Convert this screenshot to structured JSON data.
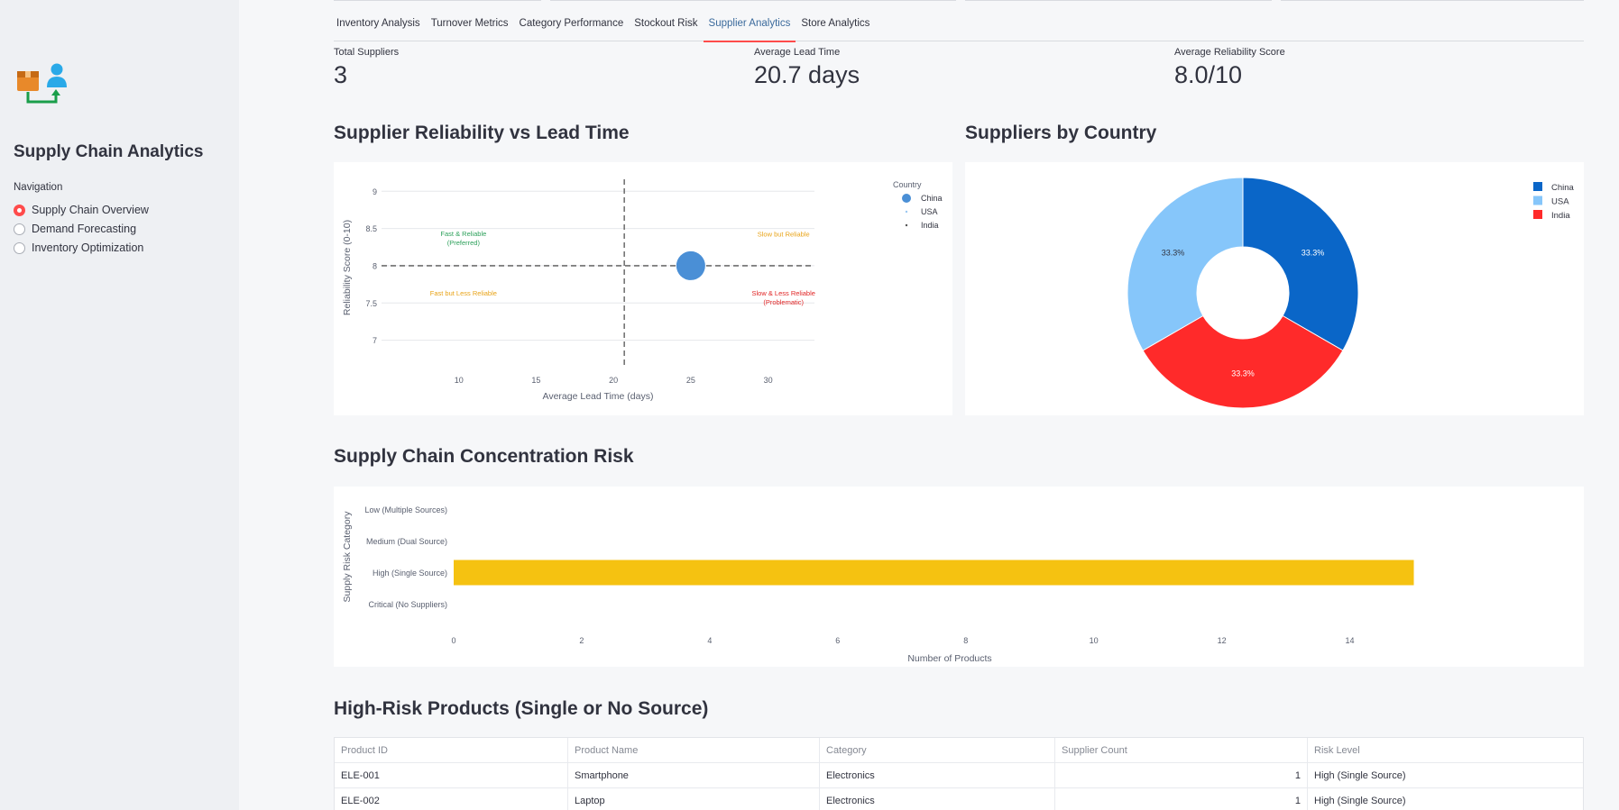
{
  "app": {
    "title": "Supply Chain Analytics",
    "logo_icon": "supply-chain-logo-icon"
  },
  "sidebar": {
    "nav_label": "Navigation",
    "items": [
      {
        "label": "Supply Chain Overview",
        "selected": true
      },
      {
        "label": "Demand Forecasting",
        "selected": false
      },
      {
        "label": "Inventory Optimization",
        "selected": false
      }
    ]
  },
  "tabs": [
    {
      "label": "Inventory Analysis",
      "active": false
    },
    {
      "label": "Turnover Metrics",
      "active": false
    },
    {
      "label": "Category Performance",
      "active": false
    },
    {
      "label": "Stockout Risk",
      "active": false
    },
    {
      "label": "Supplier Analytics",
      "active": true
    },
    {
      "label": "Store Analytics",
      "active": false
    }
  ],
  "metrics": [
    {
      "label": "Total Suppliers",
      "value": "3"
    },
    {
      "label": "Average Lead Time",
      "value": "20.7 days"
    },
    {
      "label": "Average Reliability Score",
      "value": "8.0/10"
    }
  ],
  "sections": {
    "reliability": "Supplier Reliability vs Lead Time",
    "country": "Suppliers by Country",
    "concentration": "Supply Chain Concentration Risk",
    "high_risk": "High-Risk Products (Single or No Source)"
  },
  "chart_data": [
    {
      "type": "scatter",
      "title": "",
      "xlabel": "Average Lead Time (days)",
      "ylabel": "Reliability Score (0-10)",
      "xlim": [
        5,
        33
      ],
      "ylim": [
        6.85,
        9.1
      ],
      "x_ticks": [
        10,
        15,
        20,
        25,
        30
      ],
      "y_ticks": [
        7,
        7.5,
        8,
        8.5,
        9
      ],
      "legend_title": "Country",
      "legend_position": "top-right",
      "series": [
        {
          "name": "China",
          "color": "#4a8fd6",
          "x": [
            25
          ],
          "y": [
            8.0
          ]
        },
        {
          "name": "USA",
          "color": "#9bc8f2",
          "x": [],
          "y": []
        },
        {
          "name": "India",
          "color": "#555555",
          "x": [],
          "y": []
        }
      ],
      "reference_lines": {
        "x": 20.7,
        "y": 8.0
      },
      "annotations": [
        {
          "text": [
            "Fast & Reliable",
            "(Preferred)"
          ],
          "color": "#2ca05a",
          "x": 10.3,
          "y": 8.4
        },
        {
          "text": [
            "Slow but Reliable"
          ],
          "color": "#e8a317",
          "x": 31,
          "y": 8.39
        },
        {
          "text": [
            "Fast but Less Reliable"
          ],
          "color": "#e8a317",
          "x": 10.3,
          "y": 7.6
        },
        {
          "text": [
            "Slow & Less Reliable",
            "(Problematic)"
          ],
          "color": "#e02424",
          "x": 31,
          "y": 7.6
        }
      ],
      "grid": true
    },
    {
      "type": "pie",
      "title": "",
      "hole": true,
      "legend_position": "top-right",
      "slices": [
        {
          "label": "China",
          "value": 33.3,
          "display": "33.3%",
          "color": "#0a66c8",
          "text_color": "#ffffff"
        },
        {
          "label": "India",
          "value": 33.3,
          "display": "33.3%",
          "color": "#ff2a2a",
          "text_color": "#ffffff"
        },
        {
          "label": "USA",
          "value": 33.3,
          "display": "33.3%",
          "color": "#86c6fa",
          "text_color": "#31333f"
        }
      ],
      "legend_order": [
        "China",
        "USA",
        "India"
      ]
    },
    {
      "type": "bar",
      "orientation": "horizontal",
      "title": "",
      "xlabel": "Number of Products",
      "ylabel": "Supply Risk Category",
      "categories": [
        "Low (Multiple Sources)",
        "Medium (Dual Source)",
        "High (Single Source)",
        "Critical (No Suppliers)"
      ],
      "values": [
        0,
        0,
        15,
        0
      ],
      "xlim": [
        0,
        15.5
      ],
      "x_ticks": [
        0,
        2,
        4,
        6,
        8,
        10,
        12,
        14
      ],
      "bar_color": "#f5c211",
      "grid": false
    }
  ],
  "table": {
    "headers": [
      "Product ID",
      "Product Name",
      "Category",
      "Supplier Count",
      "Risk Level"
    ],
    "rows": [
      [
        "ELE-001",
        "Smartphone",
        "Electronics",
        "1",
        "High (Single Source)"
      ],
      [
        "ELE-002",
        "Laptop",
        "Electronics",
        "1",
        "High (Single Source)"
      ]
    ]
  }
}
